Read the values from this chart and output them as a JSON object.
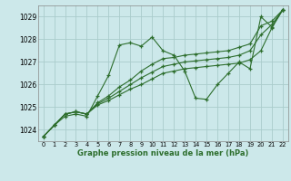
{
  "xlabel": "Graphe pression niveau de la mer (hPa)",
  "bg_color": "#cce8ea",
  "grid_color": "#aacccc",
  "line_color": "#2d6e2d",
  "x_values": [
    0,
    1,
    2,
    3,
    4,
    5,
    6,
    7,
    8,
    9,
    10,
    11,
    12,
    13,
    14,
    15,
    16,
    17,
    18,
    19,
    20,
    21,
    22
  ],
  "series1": [
    1023.7,
    1024.2,
    1024.6,
    1024.7,
    1024.6,
    1025.5,
    1026.4,
    1027.75,
    1027.85,
    1027.7,
    1028.1,
    1027.5,
    1027.3,
    1026.6,
    1025.4,
    1025.35,
    1026.0,
    1026.5,
    1027.0,
    1026.7,
    1029.0,
    1028.55,
    1029.3
  ],
  "series2": [
    1023.7,
    1024.2,
    1024.7,
    1024.8,
    1024.7,
    1025.1,
    1025.3,
    1025.55,
    1025.8,
    1026.0,
    1026.25,
    1026.5,
    1026.6,
    1026.7,
    1026.75,
    1026.8,
    1026.85,
    1026.9,
    1026.95,
    1027.1,
    1027.5,
    1028.5,
    1029.3
  ],
  "series3": [
    1023.7,
    1024.2,
    1024.7,
    1024.8,
    1024.7,
    1025.15,
    1025.4,
    1025.7,
    1026.0,
    1026.3,
    1026.55,
    1026.8,
    1026.9,
    1027.0,
    1027.05,
    1027.1,
    1027.15,
    1027.2,
    1027.3,
    1027.5,
    1028.2,
    1028.65,
    1029.3
  ],
  "series4": [
    1023.7,
    1024.2,
    1024.7,
    1024.8,
    1024.7,
    1025.2,
    1025.5,
    1025.9,
    1026.2,
    1026.6,
    1026.9,
    1027.15,
    1027.2,
    1027.3,
    1027.35,
    1027.4,
    1027.45,
    1027.5,
    1027.65,
    1027.8,
    1028.6,
    1028.8,
    1029.3
  ],
  "ylim": [
    1023.5,
    1029.5
  ],
  "yticks": [
    1024,
    1025,
    1026,
    1027,
    1028,
    1029
  ],
  "xlim": [
    -0.5,
    22.5
  ],
  "xticks": [
    0,
    1,
    2,
    3,
    4,
    5,
    6,
    7,
    8,
    9,
    10,
    11,
    12,
    13,
    14,
    15,
    16,
    17,
    18,
    19,
    20,
    21,
    22
  ]
}
